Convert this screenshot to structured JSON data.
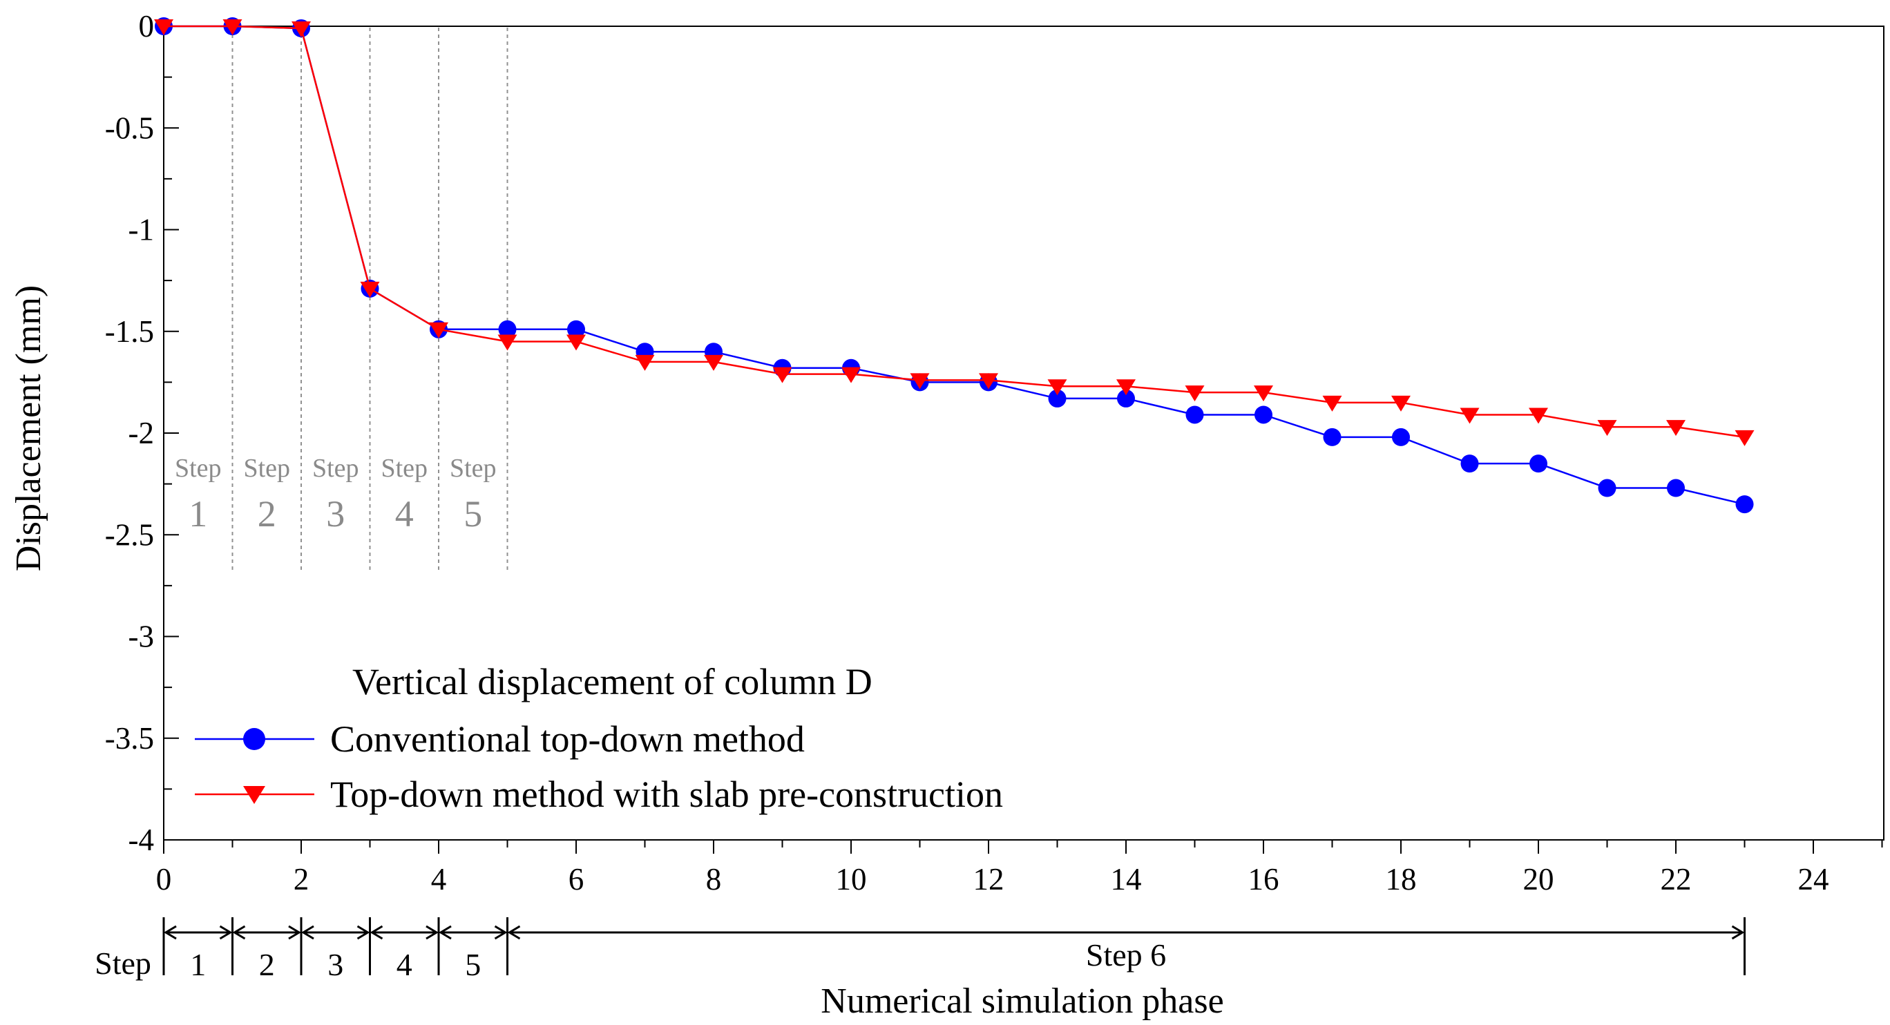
{
  "chart_data": {
    "type": "line",
    "title": "Vertical displacement of column D",
    "xlabel": "Numerical simulation phase",
    "ylabel": "Displacement (mm)",
    "xlim": [
      0,
      25
    ],
    "ylim": [
      -4,
      0
    ],
    "xticks": [
      0,
      2,
      4,
      6,
      8,
      10,
      12,
      14,
      16,
      18,
      20,
      22,
      24
    ],
    "xtick_labels": [
      "0",
      "2",
      "4",
      "6",
      "8",
      "10",
      "12",
      "14",
      "16",
      "18",
      "20",
      "22",
      "24"
    ],
    "yticks": [
      0,
      -0.5,
      -1,
      -1.5,
      -2,
      -2.5,
      -3,
      -3.5,
      -4
    ],
    "ytick_labels": [
      "0",
      "-0.5",
      "-1",
      "-1.5",
      "-2",
      "-2.5",
      "-3",
      "-3.5",
      "-4"
    ],
    "x": [
      0,
      1,
      2,
      3,
      4,
      5,
      6,
      7,
      8,
      9,
      10,
      11,
      12,
      13,
      14,
      15,
      16,
      17,
      18,
      19,
      20,
      21,
      22,
      23
    ],
    "series": [
      {
        "name": "Conventional top-down method",
        "color": "#0000ff",
        "marker": "circle",
        "values": [
          0,
          0,
          -0.01,
          -1.29,
          -1.49,
          -1.49,
          -1.49,
          -1.6,
          -1.6,
          -1.68,
          -1.68,
          -1.75,
          -1.75,
          -1.83,
          -1.83,
          -1.91,
          -1.91,
          -2.02,
          -2.02,
          -2.15,
          -2.15,
          -2.27,
          -2.27,
          -2.35
        ]
      },
      {
        "name": "Top-down method with slab pre-construction",
        "color": "#ff0000",
        "marker": "triangle-down",
        "values": [
          0,
          0,
          -0.01,
          -1.29,
          -1.49,
          -1.55,
          -1.55,
          -1.65,
          -1.65,
          -1.71,
          -1.71,
          -1.74,
          -1.74,
          -1.77,
          -1.77,
          -1.8,
          -1.8,
          -1.85,
          -1.85,
          -1.91,
          -1.91,
          -1.97,
          -1.97,
          -2.02
        ]
      }
    ],
    "legend": {
      "title": "Vertical displacement of column D",
      "placement": "lower-left"
    },
    "step_dividers": [
      1,
      2,
      3,
      4,
      5
    ],
    "plot_step_labels": [
      {
        "word": "Step",
        "num": "1"
      },
      {
        "word": "Step",
        "num": "2"
      },
      {
        "word": "Step",
        "num": "3"
      },
      {
        "word": "Step",
        "num": "4"
      },
      {
        "word": "Step",
        "num": "5"
      }
    ],
    "step_axis": {
      "prefix": "Step",
      "steps": [
        {
          "label": "1",
          "from": 0,
          "to": 1
        },
        {
          "label": "2",
          "from": 1,
          "to": 2
        },
        {
          "label": "3",
          "from": 2,
          "to": 3
        },
        {
          "label": "4",
          "from": 3,
          "to": 4
        },
        {
          "label": "5",
          "from": 4,
          "to": 5
        },
        {
          "label": "Step 6",
          "from": 5,
          "to": 23
        }
      ]
    }
  }
}
